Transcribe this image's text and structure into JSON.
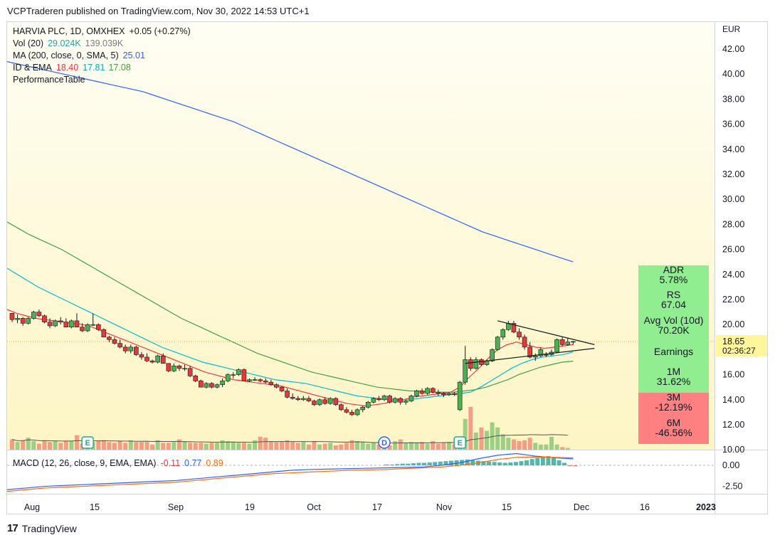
{
  "header": {
    "publisher": "VCPTraderen published on TradingView.com, Nov 30, 2022 14:53 UTC+1"
  },
  "footer": {
    "brand": "TradingView",
    "logo_text": "17"
  },
  "legend": {
    "symbol": "HARVIA PLC, 1D, OMXHEX",
    "change": "+0.05 (+0.27%)",
    "vol_label": "Vol (20)",
    "vol_v1": "29.024K",
    "vol_v2": "139.039K",
    "ma_label": "MA (200, close, 0, SMA, 5)",
    "ma_v": "25.01",
    "ema_label": "ID & EMA",
    "ema_v1": "18.40",
    "ema_v2": "17.81",
    "ema_v3": "17.08",
    "perf_label": "PerformanceTable",
    "macd_label": "MACD (12, 26, close, 9, EMA, EMA)",
    "macd_v1": "-0.11",
    "macd_v2": "0.77",
    "macd_v3": "0.89"
  },
  "colors": {
    "up": "#26a69a",
    "down": "#ef5350",
    "candle_up": "#4caf50",
    "candle_down": "#e53935",
    "ma200": "#2962ff",
    "ema_red": "#f23645",
    "ema_cyan": "#00bcd4",
    "ema_green": "#43a047",
    "bg_gradient_top": "#fffef4",
    "bg_gradient_bottom": "#fdf5c4",
    "perf_green": "#90ee90",
    "perf_red": "#ff8080"
  },
  "price_axis": {
    "currency": "EUR",
    "ticks": [
      "42.00",
      "40.00",
      "38.00",
      "36.00",
      "34.00",
      "32.00",
      "30.00",
      "28.00",
      "26.00",
      "24.00",
      "22.00",
      "20.00",
      "18.00",
      "16.00",
      "14.00",
      "12.00",
      "10.00"
    ],
    "last_price": "18.65",
    "countdown": "02:36:27"
  },
  "macd_axis": {
    "ticks": [
      "0.00",
      "-2.50"
    ]
  },
  "time_axis": {
    "labels": [
      "Aug",
      "15",
      "Sep",
      "19",
      "Oct",
      "17",
      "Nov",
      "15",
      "Dec",
      "16",
      "2023"
    ]
  },
  "performance_table": [
    {
      "label": "ADR",
      "value": "5.78%",
      "state": "positive"
    },
    {
      "label": "RS",
      "value": "67.04",
      "state": "positive"
    },
    {
      "label": "Avg Vol (10d)",
      "value": "70.20K",
      "state": "positive"
    },
    {
      "label": "Earnings",
      "value": "",
      "state": "positive"
    },
    {
      "label": "1M",
      "value": "31.62%",
      "state": "positive"
    },
    {
      "label": "3M",
      "value": "-12.19%",
      "state": "negative"
    },
    {
      "label": "6M",
      "value": "-46.56%",
      "state": "negative"
    }
  ],
  "event_markers": [
    {
      "label": "E",
      "date": "Aug 11"
    },
    {
      "label": "D",
      "date": "Oct 19"
    },
    {
      "label": "E",
      "date": "Nov 03"
    }
  ],
  "chart_data": {
    "type": "candlestick",
    "y_range": [
      10,
      43
    ],
    "series": [
      {
        "name": "HARVIA PLC, 1D, OMXHEX",
        "ohlc": [
          [
            20.9,
            20.9,
            20.2,
            20.4
          ],
          [
            20.4,
            20.8,
            20.1,
            20.5
          ],
          [
            20.5,
            20.6,
            19.9,
            20.1
          ],
          [
            20.1,
            20.6,
            20.0,
            20.5
          ],
          [
            20.5,
            21.1,
            20.4,
            21.0
          ],
          [
            21.0,
            21.2,
            20.6,
            20.7
          ],
          [
            20.7,
            20.8,
            20.1,
            20.2
          ],
          [
            20.2,
            20.5,
            19.7,
            19.9
          ],
          [
            19.9,
            20.4,
            19.8,
            20.3
          ],
          [
            20.3,
            20.6,
            20.0,
            20.2
          ],
          [
            20.2,
            20.5,
            19.8,
            19.8
          ],
          [
            19.8,
            20.4,
            19.7,
            20.3
          ],
          [
            20.3,
            20.9,
            19.8,
            19.8
          ],
          [
            19.8,
            20.1,
            19.4,
            19.5
          ],
          [
            19.5,
            20.1,
            19.4,
            20.0
          ],
          [
            20.0,
            20.9,
            19.9,
            20.0
          ],
          [
            20.0,
            20.1,
            19.5,
            19.6
          ],
          [
            19.6,
            19.7,
            19.0,
            19.0
          ],
          [
            19.0,
            19.1,
            18.6,
            18.8
          ],
          [
            18.8,
            19.0,
            18.4,
            18.5
          ],
          [
            18.5,
            18.8,
            18.1,
            18.2
          ],
          [
            18.2,
            18.4,
            17.7,
            17.9
          ],
          [
            17.9,
            18.4,
            17.7,
            18.2
          ],
          [
            18.2,
            18.3,
            17.5,
            17.6
          ],
          [
            17.6,
            17.8,
            17.2,
            17.4
          ],
          [
            17.4,
            17.7,
            17.0,
            17.1
          ],
          [
            17.1,
            17.2,
            16.9,
            17.0
          ],
          [
            17.0,
            17.6,
            16.9,
            17.5
          ],
          [
            17.5,
            17.7,
            16.9,
            16.9
          ],
          [
            16.9,
            16.9,
            16.2,
            16.3
          ],
          [
            16.3,
            16.9,
            16.2,
            16.7
          ],
          [
            16.7,
            16.8,
            16.3,
            16.5
          ],
          [
            16.5,
            16.8,
            16.3,
            16.5
          ],
          [
            16.5,
            16.7,
            15.8,
            15.9
          ],
          [
            15.9,
            16.0,
            15.4,
            15.5
          ],
          [
            15.5,
            15.6,
            15.0,
            15.0
          ],
          [
            15.0,
            15.4,
            14.9,
            15.3
          ],
          [
            15.3,
            15.4,
            14.9,
            15.0
          ],
          [
            15.0,
            15.3,
            14.9,
            15.2
          ],
          [
            15.2,
            15.7,
            15.0,
            15.5
          ],
          [
            15.5,
            16.1,
            15.4,
            16.0
          ],
          [
            16.0,
            16.2,
            15.7,
            16.0
          ],
          [
            16.0,
            16.5,
            15.9,
            16.4
          ],
          [
            16.4,
            16.5,
            15.5,
            15.5
          ],
          [
            15.5,
            15.7,
            15.4,
            15.6
          ],
          [
            15.6,
            15.8,
            15.5,
            15.6
          ],
          [
            15.6,
            15.7,
            15.4,
            15.5
          ],
          [
            15.5,
            15.7,
            15.3,
            15.4
          ],
          [
            15.4,
            15.6,
            15.1,
            15.2
          ],
          [
            15.2,
            15.3,
            14.9,
            15.0
          ],
          [
            15.0,
            15.1,
            14.6,
            14.7
          ],
          [
            14.7,
            14.9,
            14.1,
            14.2
          ],
          [
            14.2,
            14.5,
            14.0,
            14.1
          ],
          [
            14.1,
            14.3,
            13.9,
            14.0
          ],
          [
            14.0,
            14.3,
            13.9,
            14.1
          ],
          [
            14.1,
            14.3,
            13.8,
            13.9
          ],
          [
            13.9,
            14.0,
            13.5,
            13.6
          ],
          [
            13.6,
            14.1,
            13.5,
            14.0
          ],
          [
            14.0,
            14.2,
            13.6,
            13.7
          ],
          [
            13.7,
            14.2,
            13.6,
            14.1
          ],
          [
            14.1,
            14.2,
            13.5,
            13.6
          ],
          [
            13.6,
            13.7,
            13.1,
            13.2
          ],
          [
            13.2,
            13.4,
            12.9,
            13.0
          ],
          [
            13.0,
            13.2,
            12.7,
            12.8
          ],
          [
            12.8,
            13.3,
            12.7,
            13.2
          ],
          [
            13.2,
            13.5,
            13.0,
            13.4
          ],
          [
            13.4,
            13.9,
            13.3,
            13.8
          ],
          [
            13.8,
            14.2,
            13.7,
            14.1
          ],
          [
            14.1,
            14.3,
            13.9,
            14.0
          ],
          [
            14.0,
            14.4,
            13.9,
            14.3
          ],
          [
            14.3,
            14.4,
            13.7,
            13.8
          ],
          [
            13.8,
            14.2,
            13.7,
            14.1
          ],
          [
            14.1,
            14.2,
            13.6,
            13.8
          ],
          [
            13.8,
            14.0,
            13.6,
            13.9
          ],
          [
            13.9,
            14.4,
            13.8,
            14.3
          ],
          [
            14.3,
            14.8,
            14.2,
            14.7
          ],
          [
            14.7,
            14.9,
            14.4,
            14.5
          ],
          [
            14.5,
            15.0,
            14.4,
            14.9
          ],
          [
            14.9,
            15.0,
            14.5,
            14.6
          ],
          [
            14.6,
            14.8,
            14.3,
            14.5
          ],
          [
            14.5,
            14.6,
            14.2,
            14.4
          ],
          [
            14.4,
            14.6,
            14.3,
            14.5
          ],
          [
            14.5,
            14.6,
            14.3,
            14.4
          ],
          [
            13.2,
            15.5,
            13.1,
            15.4
          ],
          [
            15.4,
            18.3,
            15.2,
            17.2
          ],
          [
            17.2,
            17.4,
            16.3,
            16.5
          ],
          [
            16.5,
            17.4,
            16.4,
            17.2
          ],
          [
            17.2,
            17.3,
            16.7,
            16.8
          ],
          [
            16.8,
            17.2,
            16.7,
            17.1
          ],
          [
            17.1,
            18.1,
            17.0,
            18.0
          ],
          [
            18.0,
            19.1,
            17.9,
            19.0
          ],
          [
            19.0,
            19.7,
            18.8,
            19.6
          ],
          [
            19.6,
            20.3,
            19.5,
            20.1
          ],
          [
            20.1,
            20.3,
            19.3,
            19.4
          ],
          [
            19.4,
            19.7,
            18.8,
            19.0
          ],
          [
            19.0,
            19.2,
            18.0,
            18.2
          ],
          [
            18.2,
            18.6,
            17.3,
            17.4
          ],
          [
            17.4,
            17.7,
            17.1,
            17.5
          ],
          [
            17.5,
            18.2,
            17.4,
            18.0
          ],
          [
            17.6,
            17.8,
            17.4,
            17.6
          ],
          [
            17.6,
            18.0,
            17.5,
            17.8
          ],
          [
            17.8,
            18.9,
            17.7,
            18.8
          ],
          [
            18.8,
            19.0,
            18.3,
            18.4
          ],
          [
            18.4,
            18.9,
            18.3,
            18.6
          ],
          [
            18.6,
            18.7,
            18.4,
            18.65
          ]
        ]
      }
    ],
    "ma200": [
      41.0,
      40.8,
      40.6,
      40.4,
      40.2,
      40.0,
      39.8,
      39.6,
      39.4,
      39.2,
      39.0,
      38.8,
      38.6,
      38.3,
      38.0,
      37.7,
      37.4,
      37.1,
      36.8,
      36.5,
      36.2,
      35.8,
      35.4,
      35.0,
      34.6,
      34.2,
      33.8,
      33.4,
      33.0,
      32.6,
      32.2,
      31.8,
      31.4,
      31.0,
      30.6,
      30.2,
      29.8,
      29.4,
      29.0,
      28.6,
      28.2,
      27.8,
      27.4,
      27.1,
      26.8,
      26.5,
      26.2,
      25.9,
      25.6,
      25.3,
      25.01
    ],
    "ema_red": [
      21.2,
      20.9,
      20.7,
      20.5,
      20.4,
      20.3,
      20.2,
      20.1,
      20.0,
      19.8,
      19.5,
      19.2,
      18.9,
      18.6,
      18.3,
      18.0,
      17.7,
      17.4,
      17.1,
      16.8,
      16.5,
      16.2,
      16.0,
      15.8,
      15.6,
      15.5,
      15.4,
      15.3,
      15.2,
      15.1,
      14.9,
      14.7,
      14.5,
      14.3,
      14.1,
      13.9,
      13.7,
      13.6,
      13.5,
      13.6,
      13.7,
      13.9,
      14.0,
      14.2,
      14.3,
      14.4,
      14.5,
      14.6,
      15.0,
      15.8,
      16.5,
      17.3,
      18.0,
      18.4,
      18.6,
      18.4,
      18.2,
      18.1,
      18.2,
      18.3,
      18.4
    ],
    "ema_cyan": [
      24.5,
      24.0,
      23.5,
      23.0,
      22.6,
      22.2,
      21.8,
      21.4,
      21.0,
      20.6,
      20.2,
      19.8,
      19.4,
      19.0,
      18.6,
      18.2,
      17.9,
      17.6,
      17.3,
      17.0,
      16.8,
      16.6,
      16.4,
      16.2,
      16.0,
      15.8,
      15.6,
      15.5,
      15.4,
      15.3,
      15.1,
      14.9,
      14.7,
      14.5,
      14.3,
      14.2,
      14.1,
      14.0,
      14.0,
      14.0,
      14.1,
      14.2,
      14.3,
      14.4,
      14.5,
      14.6,
      15.0,
      15.5,
      16.0,
      16.5,
      16.9,
      17.2,
      17.4,
      17.5,
      17.6,
      17.81
    ],
    "ema_green": [
      28.2,
      27.7,
      27.2,
      26.8,
      26.4,
      26.0,
      25.5,
      25.0,
      24.5,
      24.0,
      23.5,
      23.0,
      22.5,
      22.0,
      21.5,
      21.0,
      20.5,
      20.1,
      19.7,
      19.3,
      18.9,
      18.5,
      18.1,
      17.7,
      17.4,
      17.1,
      16.8,
      16.5,
      16.2,
      16.0,
      15.8,
      15.6,
      15.4,
      15.2,
      15.0,
      14.9,
      14.8,
      14.7,
      14.7,
      14.6,
      14.6,
      14.6,
      14.7,
      14.8,
      15.0,
      15.3,
      15.6,
      16.0,
      16.3,
      16.6,
      16.8,
      17.0,
      17.08
    ],
    "triangle": {
      "upper": [
        [
          19.2,
          20.3
        ],
        [
          14.8,
          18.4
        ]
      ],
      "lower": [
        [
          19.2,
          16.9
        ],
        [
          14.8,
          18.1
        ]
      ]
    },
    "volume": [
      60,
      45,
      55,
      70,
      50,
      35,
      55,
      45,
      50,
      40,
      50,
      50,
      85,
      35,
      60,
      45,
      50,
      55,
      45,
      40,
      50,
      40,
      55,
      45,
      45,
      45,
      30,
      55,
      40,
      40,
      45,
      60,
      50,
      40,
      40,
      40,
      35,
      40,
      40,
      55,
      50,
      45,
      40,
      40,
      35,
      55,
      75,
      70,
      50,
      45,
      50,
      55,
      45,
      40,
      45,
      30,
      50,
      30,
      35,
      40,
      25,
      30,
      40,
      55,
      50,
      45,
      35,
      40,
      30,
      35,
      25,
      50,
      60,
      40,
      45,
      40,
      45,
      35,
      50,
      35,
      40,
      45,
      30,
      55,
      180,
      250,
      100,
      130,
      110,
      160,
      130,
      90,
      70,
      60,
      50,
      55,
      70,
      40,
      30,
      30,
      75,
      30,
      15,
      10
    ],
    "macd": {
      "histogram": [
        0.1,
        0.1,
        0.15,
        0.2,
        0.2,
        0.25,
        0.3,
        0.3,
        0.35,
        0.4,
        0.45,
        0.5,
        0.55,
        0.6,
        0.65,
        0.7,
        0.6,
        0.55,
        0.5,
        0.45,
        0.4,
        0.35,
        0.3,
        0.35,
        0.4,
        0.5,
        0.6,
        0.75,
        0.9,
        1.0,
        1.1,
        0.9,
        0.6,
        0.3,
        -0.05,
        -0.11
      ],
      "macd_line": [
        -2.9,
        -2.7,
        -2.5,
        -2.4,
        -2.3,
        -2.2,
        -2.1,
        -2.0,
        -1.9,
        -1.8,
        -1.6,
        -1.4,
        -1.2,
        -1.0,
        -0.8,
        -0.6,
        -0.5,
        -0.45,
        -0.4,
        -0.35,
        -0.3,
        -0.25,
        -0.2,
        0.0,
        0.3,
        0.8,
        1.2,
        1.4,
        1.1,
        0.9,
        0.77
      ],
      "signal_line": [
        -3.1,
        -2.9,
        -2.7,
        -2.6,
        -2.5,
        -2.4,
        -2.3,
        -2.2,
        -2.1,
        -2.0,
        -1.8,
        -1.6,
        -1.4,
        -1.2,
        -1.0,
        -0.9,
        -0.8,
        -0.7,
        -0.6,
        -0.55,
        -0.5,
        -0.4,
        -0.3,
        -0.2,
        0.0,
        0.3,
        0.7,
        0.95,
        1.0,
        0.95,
        0.89
      ],
      "y_range": [
        -3.3,
        1.7
      ]
    }
  }
}
